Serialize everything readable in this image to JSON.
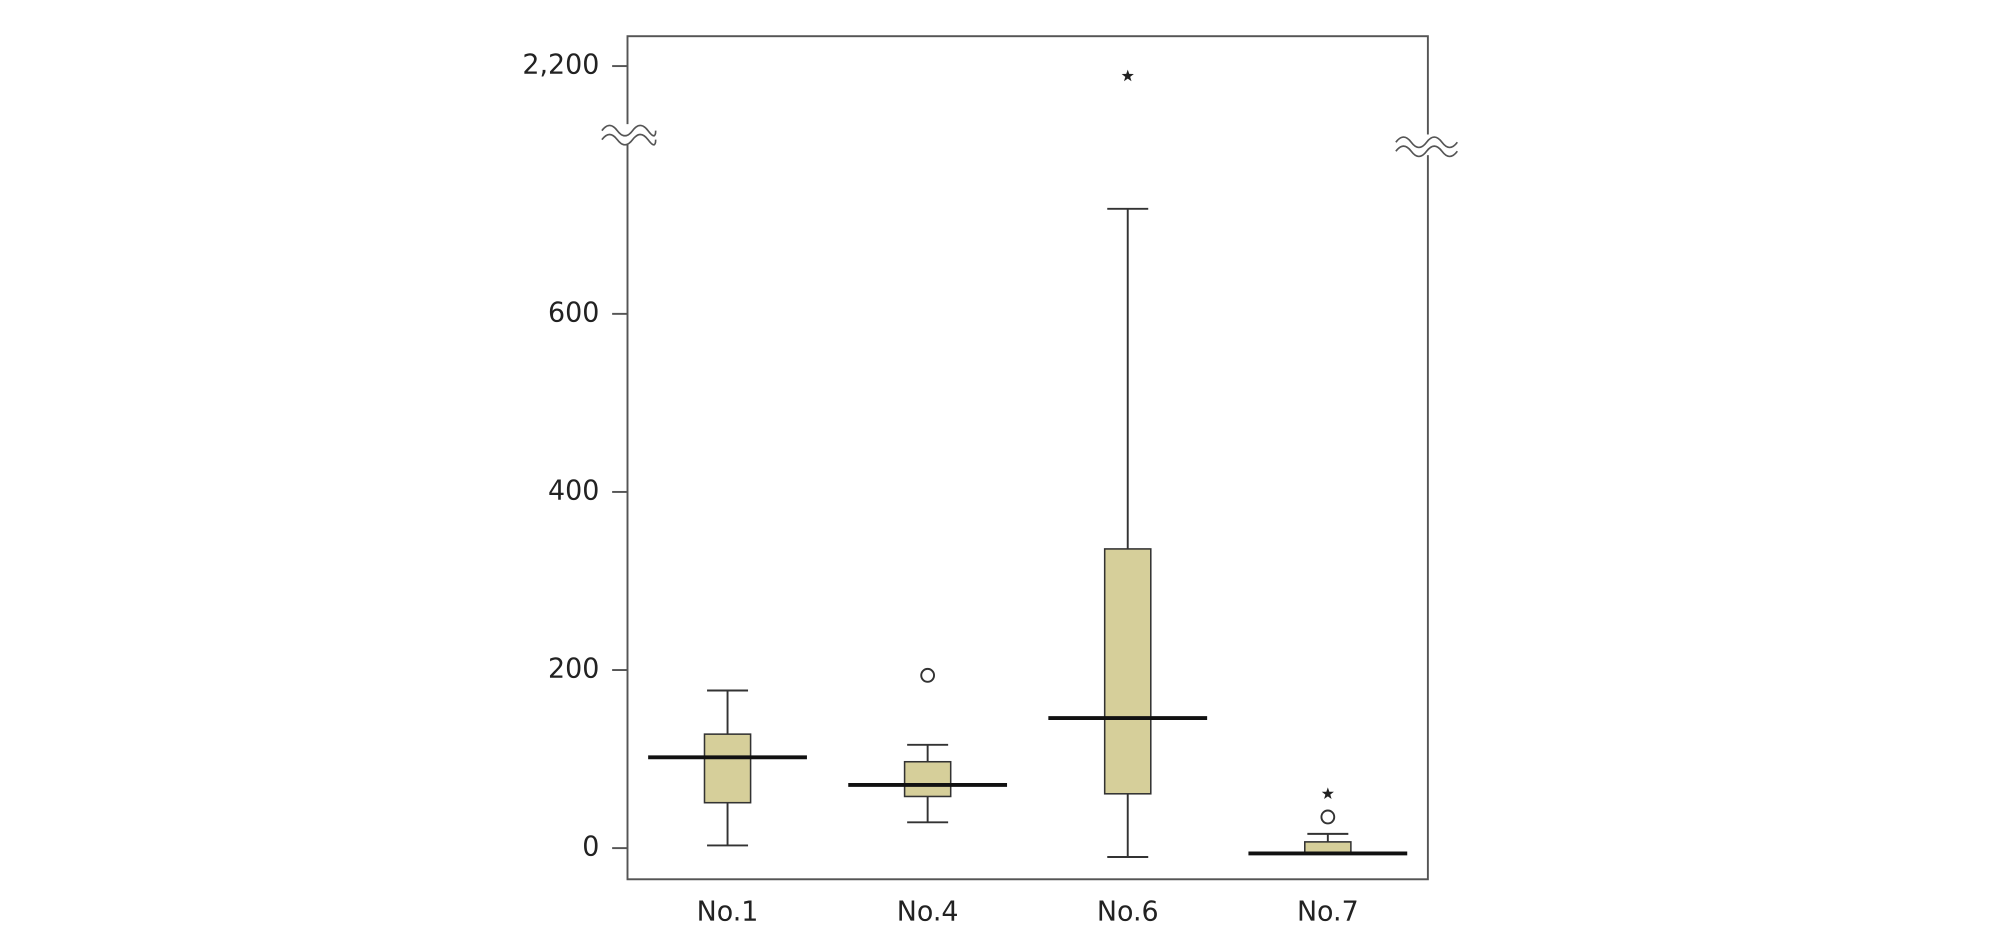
{
  "chart_data": {
    "type": "box",
    "categories": [
      "No.1",
      "No.4",
      "No.6",
      "No.7"
    ],
    "low": [
      3,
      29,
      -10,
      -6
    ],
    "q1": [
      51,
      58,
      61,
      -6
    ],
    "median": [
      102,
      71,
      146,
      -6
    ],
    "q3": [
      128,
      97,
      336,
      7
    ],
    "high": [
      177,
      116,
      718,
      16
    ],
    "outliers": [
      [],
      [
        194
      ],
      [],
      [
        35
      ]
    ],
    "extremes": [
      [],
      [],
      [
        2190
      ],
      [
        61
      ]
    ],
    "color": "#d6cf9a",
    "ylim": [
      -35,
      800
    ],
    "yticks": [
      0,
      200,
      400,
      600
    ],
    "break_ylim": [
      2130,
      2230
    ],
    "break_yticks": [
      {
        "value": 2200,
        "label": "2,200"
      }
    ]
  }
}
